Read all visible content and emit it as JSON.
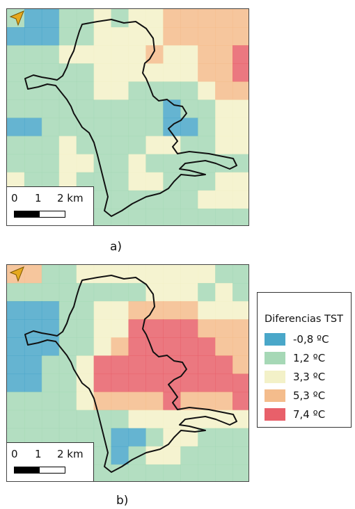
{
  "panels": [
    {
      "caption": "a)",
      "scale": {
        "labels": [
          "0",
          "1",
          "2 km"
        ]
      },
      "grid": [
        [
          2,
          1,
          1,
          2,
          2,
          3,
          2,
          3,
          3,
          4,
          4,
          4,
          4,
          4
        ],
        [
          1,
          1,
          1,
          2,
          2,
          3,
          3,
          3,
          3,
          4,
          4,
          4,
          4,
          4
        ],
        [
          2,
          2,
          2,
          3,
          3,
          3,
          3,
          3,
          4,
          3,
          3,
          4,
          4,
          5
        ],
        [
          2,
          2,
          2,
          2,
          2,
          3,
          3,
          3,
          3,
          3,
          3,
          4,
          4,
          5
        ],
        [
          2,
          2,
          2,
          2,
          2,
          3,
          3,
          2,
          2,
          2,
          2,
          3,
          4,
          4
        ],
        [
          2,
          2,
          2,
          2,
          2,
          2,
          2,
          2,
          2,
          1,
          2,
          2,
          3,
          3
        ],
        [
          1,
          1,
          2,
          2,
          2,
          2,
          2,
          2,
          2,
          1,
          1,
          2,
          3,
          3
        ],
        [
          2,
          2,
          2,
          3,
          2,
          2,
          2,
          2,
          3,
          3,
          2,
          2,
          3,
          3
        ],
        [
          2,
          2,
          2,
          3,
          3,
          2,
          2,
          3,
          2,
          2,
          2,
          2,
          2,
          2
        ],
        [
          3,
          2,
          2,
          3,
          2,
          2,
          2,
          3,
          3,
          2,
          2,
          2,
          3,
          3
        ],
        [
          2,
          2,
          2,
          2,
          2,
          2,
          2,
          2,
          2,
          2,
          2,
          3,
          3,
          3
        ],
        [
          1,
          1,
          2,
          2,
          2,
          2,
          2,
          2,
          2,
          2,
          2,
          2,
          2,
          2
        ]
      ]
    },
    {
      "caption": "b)",
      "scale": {
        "labels": [
          "0",
          "1",
          "2 km"
        ]
      },
      "grid": [
        [
          4,
          4,
          2,
          2,
          3,
          3,
          3,
          3,
          3,
          3,
          3,
          3,
          2,
          2
        ],
        [
          2,
          2,
          2,
          2,
          2,
          2,
          2,
          2,
          3,
          3,
          3,
          2,
          3,
          2
        ],
        [
          1,
          1,
          1,
          2,
          2,
          3,
          3,
          4,
          4,
          4,
          4,
          3,
          3,
          3
        ],
        [
          1,
          1,
          1,
          2,
          2,
          3,
          3,
          5,
          5,
          5,
          5,
          4,
          4,
          4
        ],
        [
          1,
          1,
          1,
          2,
          2,
          3,
          4,
          5,
          5,
          5,
          5,
          5,
          4,
          4
        ],
        [
          1,
          1,
          2,
          2,
          3,
          5,
          5,
          5,
          5,
          5,
          5,
          5,
          5,
          4
        ],
        [
          1,
          1,
          2,
          2,
          3,
          5,
          5,
          5,
          5,
          5,
          5,
          5,
          5,
          5
        ],
        [
          2,
          2,
          2,
          2,
          3,
          4,
          4,
          4,
          4,
          5,
          4,
          4,
          4,
          5
        ],
        [
          2,
          2,
          2,
          2,
          2,
          2,
          2,
          3,
          3,
          3,
          3,
          3,
          3,
          3
        ],
        [
          2,
          2,
          2,
          2,
          2,
          2,
          1,
          1,
          2,
          3,
          3,
          2,
          2,
          2
        ],
        [
          2,
          2,
          2,
          2,
          2,
          2,
          1,
          2,
          3,
          3,
          2,
          2,
          2,
          2
        ],
        [
          2,
          2,
          2,
          2,
          2,
          2,
          2,
          2,
          2,
          2,
          2,
          2,
          2,
          2
        ]
      ]
    }
  ],
  "legend": {
    "title": "Diferencias TST",
    "items": [
      {
        "label": "-0,8 ºC",
        "color": "#4aa7c9"
      },
      {
        "label": "1,2 ºC",
        "color": "#a6d8b6"
      },
      {
        "label": "3,3 ºC",
        "color": "#f3f1c8"
      },
      {
        "label": "5,3 ºC",
        "color": "#f4bc8c"
      },
      {
        "label": "7,4 ºC",
        "color": "#e8606a"
      }
    ]
  },
  "north_arrow_color": "#e6a91f",
  "boundary_color": "#111111"
}
